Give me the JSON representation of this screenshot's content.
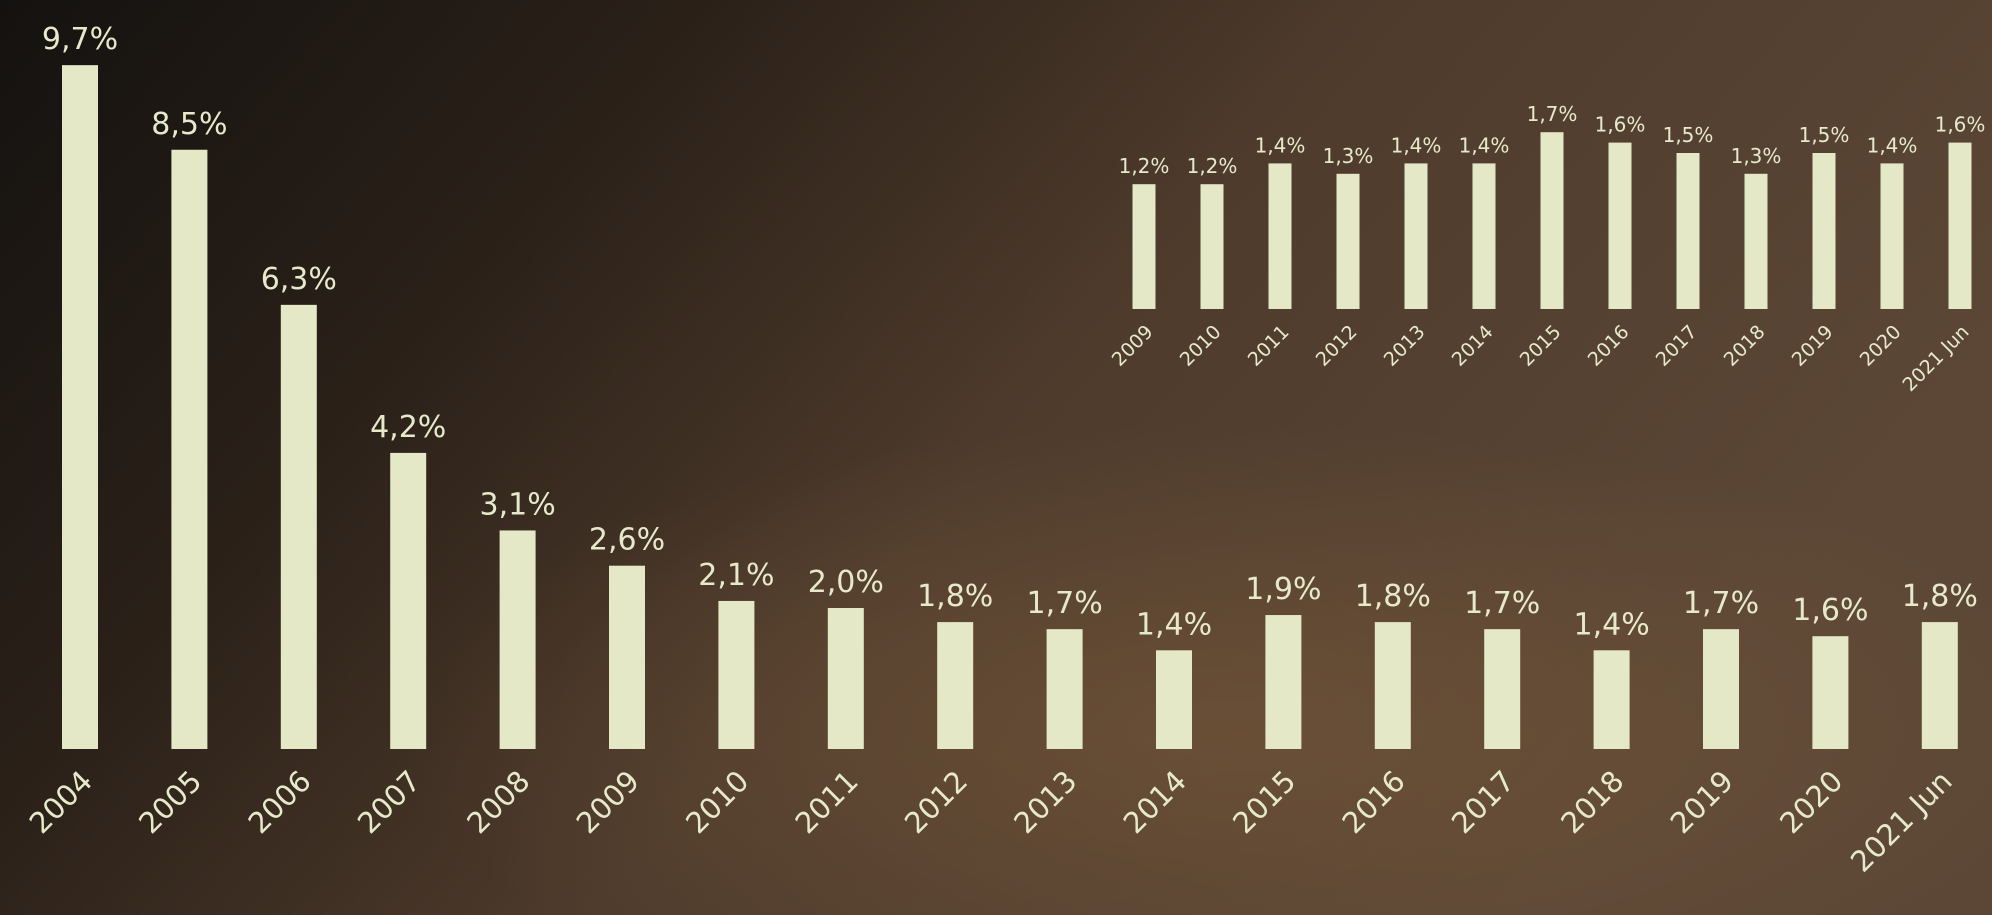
{
  "chart_data": [
    {
      "type": "bar",
      "color": "#e4e8c6",
      "categories": [
        "2004",
        "2005",
        "2006",
        "2007",
        "2008",
        "2009",
        "2010",
        "2011",
        "2012",
        "2013",
        "2014",
        "2015",
        "2016",
        "2017",
        "2018",
        "2019",
        "2020",
        "2021 Jun"
      ],
      "values": [
        9.7,
        8.5,
        6.3,
        4.2,
        3.1,
        2.6,
        2.1,
        2.0,
        1.8,
        1.7,
        1.4,
        1.9,
        1.8,
        1.7,
        1.4,
        1.7,
        1.6,
        1.8
      ],
      "value_labels": [
        "9,7%",
        "8,5%",
        "6,3%",
        "4,2%",
        "3,1%",
        "2,6%",
        "2,1%",
        "2,0%",
        "1,8%",
        "1,7%",
        "1,4%",
        "1,9%",
        "1,8%",
        "1,7%",
        "1,4%",
        "1,7%",
        "1,6%",
        "1,8%"
      ],
      "ylim": [
        0,
        10
      ]
    },
    {
      "type": "bar",
      "color": "#e4e8c6",
      "categories": [
        "2009",
        "2010",
        "2011",
        "2012",
        "2013",
        "2014",
        "2015",
        "2016",
        "2017",
        "2018",
        "2019",
        "2020",
        "2021 Jun"
      ],
      "values": [
        1.2,
        1.2,
        1.4,
        1.3,
        1.4,
        1.4,
        1.7,
        1.6,
        1.5,
        1.3,
        1.5,
        1.4,
        1.6
      ],
      "value_labels": [
        "1,2%",
        "1,2%",
        "1,4%",
        "1,3%",
        "1,4%",
        "1,4%",
        "1,7%",
        "1,6%",
        "1,5%",
        "1,3%",
        "1,5%",
        "1,4%",
        "1,6%"
      ],
      "ylim": [
        0,
        2
      ]
    }
  ]
}
